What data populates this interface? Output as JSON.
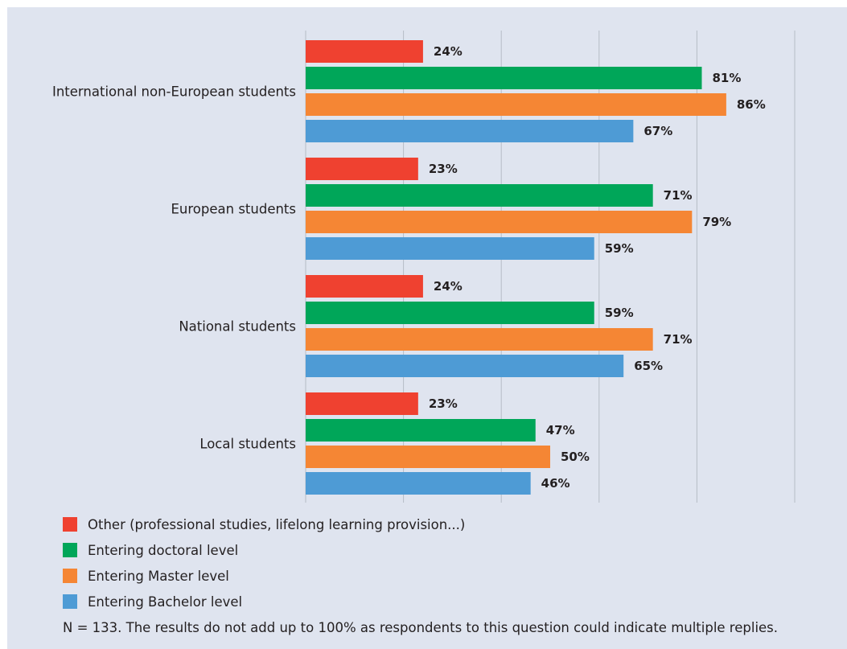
{
  "chart_data": {
    "type": "bar",
    "orientation": "horizontal",
    "categories": [
      "International non-European students",
      "European students",
      "National students",
      "Local students"
    ],
    "series": [
      {
        "name": "Other (professional studies, lifelong learning provision...)",
        "color": "#ef4130",
        "values": [
          24,
          23,
          24,
          23
        ]
      },
      {
        "name": "Entering doctoral level",
        "color": "#00a659",
        "values": [
          81,
          71,
          59,
          47
        ]
      },
      {
        "name": "Entering Master level",
        "color": "#f58634",
        "values": [
          86,
          79,
          71,
          50
        ]
      },
      {
        "name": "Entering Bachelor level",
        "color": "#4e9bd5",
        "values": [
          67,
          59,
          65,
          46
        ]
      }
    ],
    "value_suffix": "%",
    "xlim": [
      0,
      100
    ],
    "grid": true,
    "legend_position": "bottom"
  },
  "note": "N = 133. The results do not add up to 100% as respondents to this question could indicate multiple replies."
}
